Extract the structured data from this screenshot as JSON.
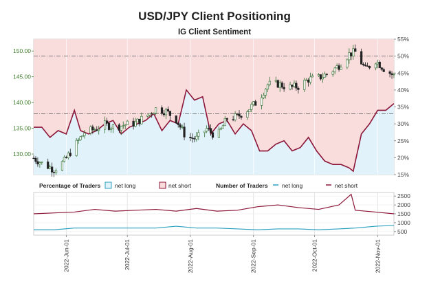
{
  "header": {
    "title": "USD/JPY Client Positioning",
    "subtitle": "IG Client Sentiment"
  },
  "legend": {
    "pct_title": "Percentage of Traders",
    "pct_long": "net long",
    "pct_short": "net short",
    "num_title": "Number of Traders",
    "num_long": "net long",
    "num_short": "net short"
  },
  "colors": {
    "long_fill": "#e2f2fb",
    "short_fill": "#f9dcdc",
    "long_line": "#2a9fc0",
    "short_line": "#8b1538",
    "price_up": "#2f6e2f",
    "price_down": "#222222",
    "price_axis": "#3e7d2c",
    "grid_ref": "#555555"
  },
  "chart_data": [
    {
      "type": "line",
      "title": "USD/JPY Client Positioning",
      "subtitle": "IG Client Sentiment",
      "description": "Daily USD/JPY candlesticks over net long / net short client share",
      "x_ticks": [
        "2022-Jun-01",
        "2022-Jul-01",
        "2022-Aug-01",
        "2022-Sep-01",
        "2022-Oct-01",
        "2022-Nov-01"
      ],
      "date_range": [
        "2022-05-16",
        "2022-11-09"
      ],
      "price_axis": {
        "ticks": [
          "130.00",
          "135.00",
          "140.00",
          "145.00",
          "150.00"
        ],
        "ylim": [
          126.0,
          152.3
        ]
      },
      "pct_axis": {
        "ticks": [
          "15%",
          "20%",
          "25%",
          "30%",
          "35%",
          "40%",
          "45%",
          "50%",
          "55%"
        ],
        "ylim": [
          15,
          55
        ]
      },
      "reference_lines": [
        {
          "axis": "pct",
          "value": 50
        },
        {
          "axis": "pct",
          "value": 33
        }
      ],
      "series": [
        {
          "name": "net long",
          "type": "area",
          "dates": [
            "2022-05-16",
            "2022-05-20",
            "2022-05-24",
            "2022-05-28",
            "2022-06-01",
            "2022-06-05",
            "2022-06-08",
            "2022-06-12",
            "2022-06-16",
            "2022-06-20",
            "2022-06-24",
            "2022-06-28",
            "2022-07-02",
            "2022-07-06",
            "2022-07-10",
            "2022-07-14",
            "2022-07-18",
            "2022-07-22",
            "2022-07-26",
            "2022-07-30",
            "2022-08-03",
            "2022-08-07",
            "2022-08-11",
            "2022-08-15",
            "2022-08-19",
            "2022-08-23",
            "2022-08-27",
            "2022-08-31",
            "2022-09-04",
            "2022-09-08",
            "2022-09-12",
            "2022-09-16",
            "2022-09-20",
            "2022-09-24",
            "2022-09-28",
            "2022-10-02",
            "2022-10-06",
            "2022-10-10",
            "2022-10-14",
            "2022-10-18",
            "2022-10-20",
            "2022-10-24",
            "2022-10-28",
            "2022-11-01",
            "2022-11-05",
            "2022-11-09"
          ],
          "values": [
            29,
            29,
            26,
            28,
            27,
            34,
            28,
            27,
            28,
            30,
            31,
            27,
            29,
            30,
            31,
            33,
            28,
            31,
            30,
            40,
            37,
            38,
            27,
            30,
            31,
            27,
            30,
            28,
            22,
            22,
            24,
            25,
            22,
            23,
            26,
            22,
            19,
            18,
            18,
            17,
            16,
            27,
            30,
            34,
            34,
            36
          ]
        },
        {
          "name": "net short",
          "type": "line",
          "dates": [
            "2022-05-16",
            "2022-05-20",
            "2022-05-24",
            "2022-05-28",
            "2022-06-01",
            "2022-06-05",
            "2022-06-08",
            "2022-06-12",
            "2022-06-16",
            "2022-06-20",
            "2022-06-24",
            "2022-06-28",
            "2022-07-02",
            "2022-07-06",
            "2022-07-10",
            "2022-07-14",
            "2022-07-18",
            "2022-07-22",
            "2022-07-26",
            "2022-07-30",
            "2022-08-03",
            "2022-08-07",
            "2022-08-11",
            "2022-08-15",
            "2022-08-19",
            "2022-08-23",
            "2022-08-27",
            "2022-08-31",
            "2022-09-04",
            "2022-09-08",
            "2022-09-12",
            "2022-09-16",
            "2022-09-20",
            "2022-09-24",
            "2022-09-28",
            "2022-10-02",
            "2022-10-06",
            "2022-10-10",
            "2022-10-14",
            "2022-10-18",
            "2022-10-20",
            "2022-10-24",
            "2022-10-28",
            "2022-11-01",
            "2022-11-05",
            "2022-11-09"
          ],
          "values": [
            29,
            29,
            26,
            28,
            27,
            34,
            28,
            27,
            28,
            30,
            31,
            27,
            29,
            30,
            31,
            33,
            28,
            31,
            30,
            40,
            37,
            38,
            27,
            30,
            31,
            27,
            30,
            28,
            22,
            22,
            24,
            25,
            22,
            23,
            26,
            22,
            19,
            18,
            18,
            17,
            16,
            27,
            30,
            34,
            34,
            36
          ]
        },
        {
          "name": "USD/JPY",
          "type": "candlestick",
          "dates": [
            "2022-05-16",
            "2022-05-21",
            "2022-05-26",
            "2022-05-31",
            "2022-06-05",
            "2022-06-10",
            "2022-06-15",
            "2022-06-20",
            "2022-06-25",
            "2022-06-30",
            "2022-07-05",
            "2022-07-10",
            "2022-07-15",
            "2022-07-20",
            "2022-07-25",
            "2022-07-30",
            "2022-08-04",
            "2022-08-09",
            "2022-08-14",
            "2022-08-19",
            "2022-08-24",
            "2022-08-29",
            "2022-09-03",
            "2022-09-08",
            "2022-09-13",
            "2022-09-18",
            "2022-09-23",
            "2022-09-28",
            "2022-10-03",
            "2022-10-08",
            "2022-10-13",
            "2022-10-18",
            "2022-10-21",
            "2022-10-26",
            "2022-10-31",
            "2022-11-04",
            "2022-11-09"
          ],
          "close": [
            129.2,
            128.0,
            127.0,
            128.6,
            131.5,
            134.2,
            134.8,
            135.7,
            135.2,
            135.7,
            136.0,
            137.3,
            138.8,
            138.3,
            136.7,
            133.2,
            133.0,
            134.9,
            133.3,
            136.9,
            137.2,
            138.6,
            140.2,
            143.5,
            143.6,
            142.9,
            143.1,
            144.5,
            144.8,
            145.7,
            147.2,
            149.4,
            149.8,
            146.4,
            148.2,
            146.6,
            145.2
          ]
        }
      ]
    },
    {
      "type": "line",
      "title": "Number of Traders",
      "y_ticks": [
        "500",
        "1000",
        "1500",
        "2000",
        "2500"
      ],
      "ylim": [
        300,
        2700
      ],
      "series": [
        {
          "name": "net long",
          "dates": [
            "2022-05-16",
            "2022-05-26",
            "2022-06-05",
            "2022-06-15",
            "2022-06-25",
            "2022-07-05",
            "2022-07-15",
            "2022-07-25",
            "2022-08-04",
            "2022-08-14",
            "2022-08-24",
            "2022-09-03",
            "2022-09-13",
            "2022-09-23",
            "2022-10-03",
            "2022-10-13",
            "2022-10-21",
            "2022-10-31",
            "2022-11-09"
          ],
          "values": [
            600,
            600,
            700,
            700,
            700,
            700,
            700,
            800,
            700,
            700,
            650,
            600,
            650,
            650,
            600,
            650,
            700,
            800,
            850
          ]
        },
        {
          "name": "net short",
          "dates": [
            "2022-05-16",
            "2022-05-26",
            "2022-06-05",
            "2022-06-15",
            "2022-06-25",
            "2022-07-05",
            "2022-07-15",
            "2022-07-25",
            "2022-08-04",
            "2022-08-14",
            "2022-08-24",
            "2022-09-03",
            "2022-09-13",
            "2022-09-23",
            "2022-10-03",
            "2022-10-13",
            "2022-10-19",
            "2022-10-21",
            "2022-10-31",
            "2022-11-09"
          ],
          "values": [
            1500,
            1550,
            1600,
            1750,
            1650,
            1700,
            1750,
            1650,
            1800,
            1650,
            1700,
            1900,
            2000,
            1850,
            1750,
            2000,
            2600,
            1700,
            1600,
            1500
          ]
        }
      ]
    }
  ]
}
